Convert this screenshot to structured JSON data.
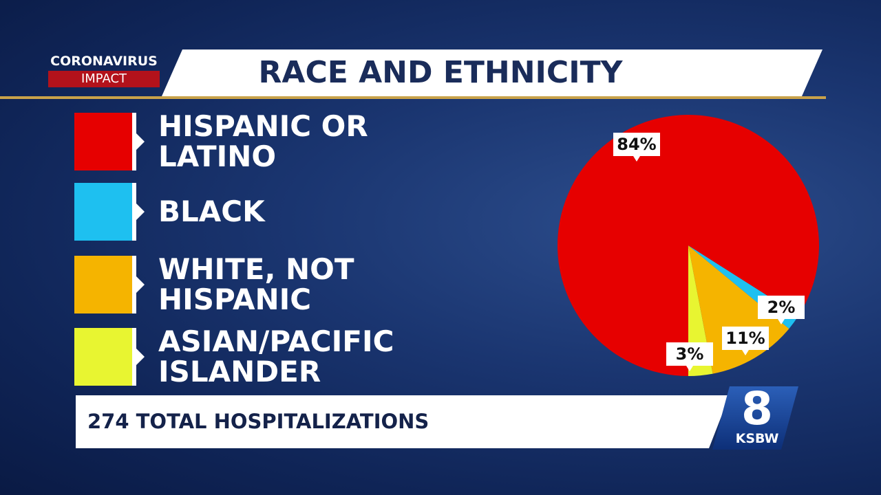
{
  "chart_data": {
    "type": "pie",
    "title": "RACE AND ETHNICITY",
    "tag": "CORONAVIRUS",
    "subtag": "IMPACT",
    "footer": "274 TOTAL HOSPITALIZATIONS",
    "logo_number": "8",
    "logo_name": "KSBW",
    "categories": [
      "HISPANIC OR LATINO",
      "BLACK",
      "WHITE, NOT HISPANIC",
      "ASIAN/PACIFIC ISLANDER"
    ],
    "values": [
      84,
      2,
      11,
      3
    ],
    "value_labels": [
      "84%",
      "2%",
      "11%",
      "3%"
    ],
    "colors": [
      "#e60000",
      "#1ec0f0",
      "#f5b400",
      "#e8f531"
    ]
  }
}
